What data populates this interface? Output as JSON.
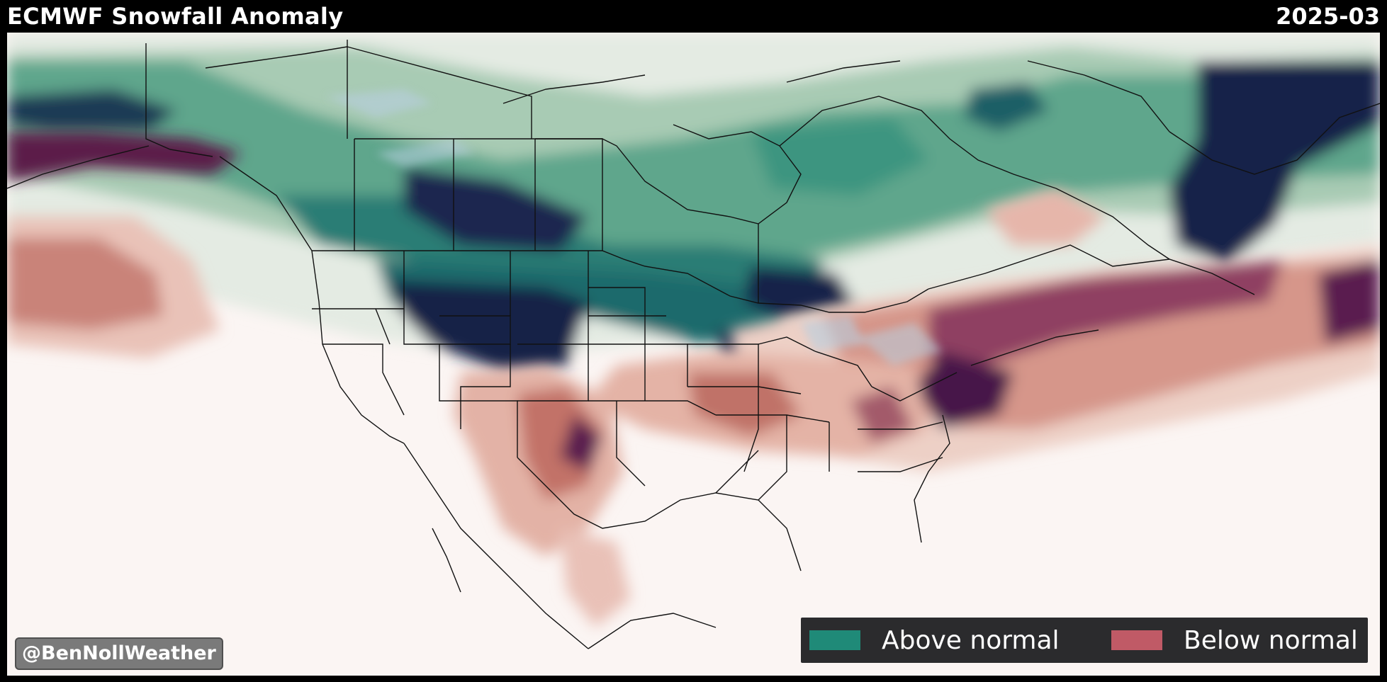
{
  "header": {
    "title": "ECMWF Snowfall Anomaly",
    "date": "2025-03"
  },
  "legend": {
    "items": [
      {
        "label": "Above normal",
        "color": "#1f8a78"
      },
      {
        "label": "Below normal",
        "color": "#c05a66"
      }
    ]
  },
  "credit": "@BenNollWeather",
  "colors": {
    "ocean_background": "#fbf5f3",
    "above_light": "#dfe8e0",
    "above_mid": "#8cbfa4",
    "above_strong": "#2a8a78",
    "above_extreme": "#182248",
    "below_light": "#f0d2c8",
    "below_mid": "#d48a7e",
    "below_strong": "#9c4a64",
    "below_extreme": "#4a1848",
    "boundary": "#111111"
  }
}
